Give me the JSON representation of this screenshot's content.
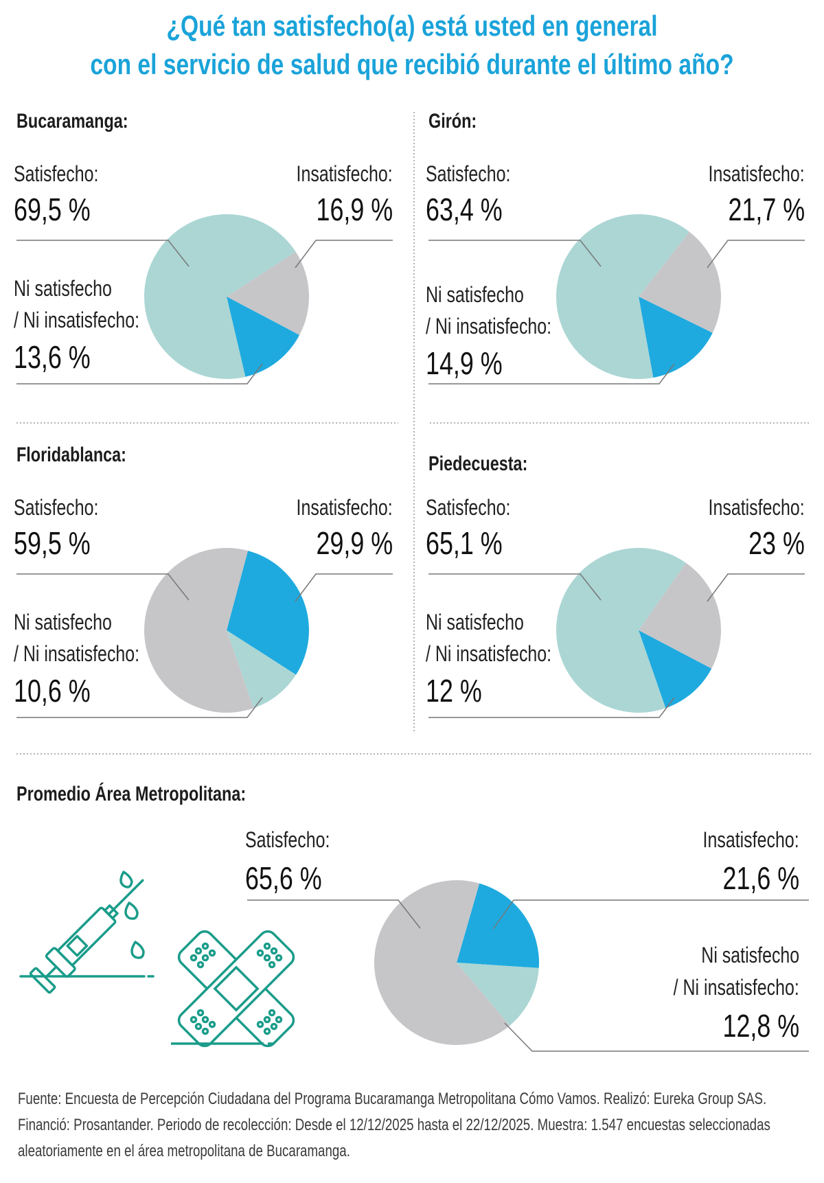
{
  "title": {
    "line1": "¿Qué tan satisfecho(a) está usted en general",
    "line2": "con el servicio de salud que recibió durante el último año?"
  },
  "colors": {
    "title": "#1aa3d9",
    "teal": "#abd6d4",
    "gray": "#c6c6c9",
    "blue": "#1eaadf",
    "icon": "#1a9c8a"
  },
  "labels": {
    "satisfied": "Satisfecho:",
    "dissatisfied": "Insatisfecho:",
    "neutral_1": "Ni satisfecho",
    "neutral_2": "/ Ni insatisfecho:"
  },
  "chart_data": [
    {
      "type": "pie",
      "title": "Bucaramanga:",
      "categories": [
        "Insatisfecho",
        "Ni satisfecho / Ni insatisfecho",
        "Satisfecho"
      ],
      "values": [
        16.9,
        13.6,
        69.5
      ],
      "value_labels": [
        "16,9 %",
        "13,6 %",
        "69,5 %"
      ],
      "colors": [
        "#c6c6c9",
        "#1eaadf",
        "#abd6d4"
      ],
      "start_angle": -33
    },
    {
      "type": "pie",
      "title": "Girón:",
      "categories": [
        "Insatisfecho",
        "Ni satisfecho / Ni insatisfecho",
        "Satisfecho"
      ],
      "values": [
        21.7,
        14.9,
        63.4
      ],
      "value_labels": [
        "21,7 %",
        "14,9 %",
        "63,4 %"
      ],
      "colors": [
        "#c6c6c9",
        "#1eaadf",
        "#abd6d4"
      ],
      "start_angle": -52
    },
    {
      "type": "pie",
      "title": "Floridablanca:",
      "categories": [
        "Insatisfecho",
        "Ni satisfecho / Ni insatisfecho",
        "Satisfecho"
      ],
      "values": [
        29.9,
        10.6,
        59.5
      ],
      "value_labels": [
        "29,9 %",
        "10,6 %",
        "59,5 %"
      ],
      "colors": [
        "#1eaadf",
        "#abd6d4",
        "#c6c6c9"
      ],
      "start_angle": -75
    },
    {
      "type": "pie",
      "title": "Piedecuesta:",
      "categories": [
        "Insatisfecho",
        "Ni satisfecho / Ni insatisfecho",
        "Satisfecho"
      ],
      "values": [
        23,
        12,
        65.1
      ],
      "value_labels": [
        "23 %",
        "12 %",
        "65,1 %"
      ],
      "colors": [
        "#c6c6c9",
        "#1eaadf",
        "#abd6d4"
      ],
      "start_angle": -55
    },
    {
      "type": "pie",
      "title": "Promedio Área Metropolitana:",
      "categories": [
        "Insatisfecho",
        "Ni satisfecho / Ni insatisfecho",
        "Satisfecho"
      ],
      "values": [
        21.6,
        12.8,
        65.6
      ],
      "value_labels": [
        "21,6 %",
        "12,8 %",
        "65,6 %"
      ],
      "colors": [
        "#1eaadf",
        "#abd6d4",
        "#c6c6c9"
      ],
      "start_angle": -74
    }
  ],
  "footer": "Fuente: Encuesta de Percepción Ciudadana del Programa Bucaramanga Metropolitana Cómo Vamos. Realizó: Eureka Group SAS. Financió: Prosantander.  Periodo de recolección: Desde el 12/12/2025 hasta el 22/12/2025. Muestra: 1.547 encuestas seleccionadas aleatoriamente en el área metropolitana de Bucaramanga."
}
